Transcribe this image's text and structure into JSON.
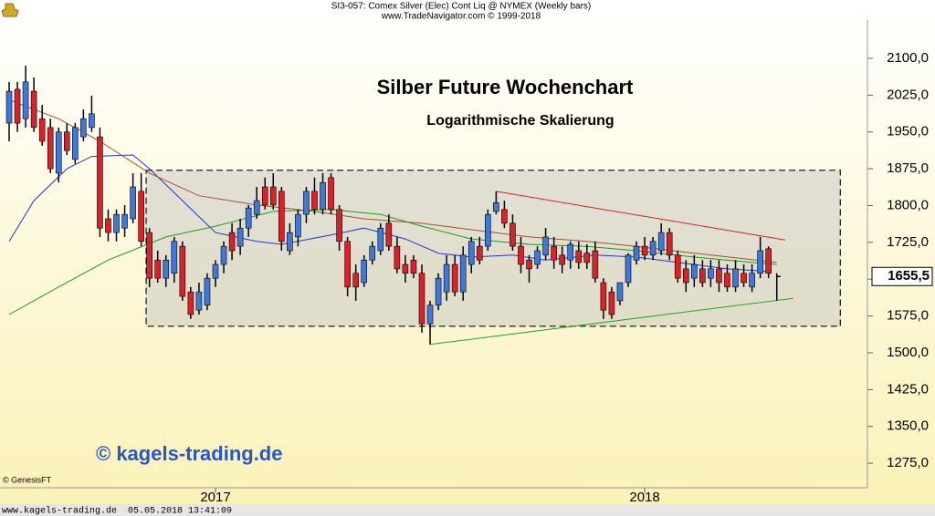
{
  "header": {
    "line1": "SI3-057:  Comex Silver (Elec) Cont Liq @ NYMEX  (Weekly bars)",
    "line2": "www.TradeNavigator.com © 1999-2018"
  },
  "watermark": "© kagels-trading.de",
  "source": "© GenesisFT",
  "footer": {
    "site": "www.kagels-trading.de",
    "timestamp": "05.05.2018 13:41:09"
  },
  "chart_data": {
    "type": "candlestick",
    "title": "Silber Future Wochenchart",
    "subtitle": "Logarithmische Skalierung",
    "categories": [
      null,
      null,
      null,
      null,
      null,
      null,
      null,
      null,
      null,
      null,
      null,
      null,
      null,
      null,
      null,
      null,
      null,
      null,
      null,
      null,
      null,
      null,
      null,
      null,
      null,
      "2017",
      null,
      null,
      null,
      null,
      null,
      null,
      null,
      null,
      null,
      null,
      null,
      null,
      null,
      null,
      null,
      null,
      null,
      null,
      null,
      null,
      null,
      null,
      null,
      null,
      null,
      null,
      null,
      null,
      null,
      null,
      null,
      null,
      null,
      null,
      null,
      null,
      null,
      null,
      null,
      null,
      null,
      null,
      null,
      null,
      null,
      null,
      null,
      null,
      null,
      null,
      null,
      "2018",
      null,
      null,
      null,
      null,
      null,
      null,
      null,
      null,
      null,
      null,
      null,
      null,
      null,
      null,
      null,
      null
    ],
    "open": [
      1968,
      2037,
      1977,
      2033,
      1977,
      1959,
      1866,
      1950,
      1894,
      1940,
      1959,
      1940,
      1773,
      1745,
      1754,
      1773,
      1829,
      1745,
      1689,
      1652,
      1662,
      1717,
      1624,
      1587,
      1597,
      1652,
      1680,
      1745,
      1717,
      1754,
      1782,
      1838,
      1838,
      1829,
      1708,
      1736,
      1782,
      1829,
      1792,
      1857,
      1792,
      1727,
      1662,
      1643,
      1689,
      1708,
      1764,
      1717,
      1680,
      1689,
      1662,
      1559,
      1597,
      1624,
      1680,
      1624,
      1680,
      1717,
      1717,
      1788,
      1792,
      1764,
      1717,
      1689,
      1680,
      1699,
      1717,
      1699,
      1689,
      1708,
      1703,
      1708,
      1643,
      1624,
      1606,
      1643,
      1689,
      1717,
      1699,
      1708,
      1745,
      1699,
      1671,
      1652,
      1671,
      1652,
      1671,
      1662,
      1634,
      1662,
      1634,
      1662,
      1712,
      1662
    ],
    "high": [
      2052,
      2052,
      2085,
      2061,
      2005,
      1977,
      1959,
      1968,
      1968,
      1996,
      2024,
      1959,
      1792,
      1792,
      1801,
      1866,
      1866,
      1754,
      1708,
      1699,
      1736,
      1727,
      1634,
      1643,
      1662,
      1689,
      1727,
      1764,
      1773,
      1801,
      1838,
      1857,
      1866,
      1838,
      1764,
      1792,
      1838,
      1857,
      1866,
      1866,
      1801,
      1736,
      1680,
      1699,
      1727,
      1764,
      1782,
      1736,
      1699,
      1699,
      1680,
      1606,
      1662,
      1699,
      1699,
      1717,
      1736,
      1736,
      1792,
      1829,
      1810,
      1782,
      1736,
      1699,
      1717,
      1754,
      1736,
      1717,
      1727,
      1727,
      1721,
      1727,
      1652,
      1634,
      1643,
      1703,
      1727,
      1736,
      1736,
      1764,
      1754,
      1708,
      1689,
      1699,
      1689,
      1689,
      1689,
      1680,
      1689,
      1680,
      1680,
      1736,
      1717,
      1662
    ],
    "low": [
      1931,
      1950,
      1959,
      1950,
      1922,
      1866,
      1847,
      1903,
      1885,
      1931,
      1950,
      1736,
      1727,
      1727,
      1736,
      1764,
      1717,
      1634,
      1643,
      1634,
      1643,
      1606,
      1569,
      1578,
      1587,
      1634,
      1662,
      1689,
      1699,
      1736,
      1773,
      1792,
      1792,
      1708,
      1699,
      1717,
      1764,
      1782,
      1782,
      1782,
      1708,
      1615,
      1606,
      1634,
      1680,
      1699,
      1708,
      1662,
      1643,
      1652,
      1541,
      1517,
      1587,
      1606,
      1615,
      1606,
      1662,
      1680,
      1708,
      1782,
      1754,
      1708,
      1662,
      1643,
      1671,
      1689,
      1671,
      1662,
      1671,
      1671,
      1671,
      1643,
      1569,
      1569,
      1597,
      1634,
      1680,
      1689,
      1689,
      1699,
      1689,
      1643,
      1624,
      1634,
      1634,
      1634,
      1624,
      1624,
      1624,
      1634,
      1624,
      1652,
      1652,
      1606
    ],
    "close": [
      2033,
      1968,
      2052,
      1959,
      1931,
      1875,
      1950,
      1912,
      1959,
      1977,
      1987,
      1754,
      1745,
      1782,
      1782,
      1838,
      1727,
      1652,
      1652,
      1689,
      1727,
      1615,
      1578,
      1624,
      1652,
      1680,
      1717,
      1708,
      1754,
      1795,
      1810,
      1801,
      1801,
      1727,
      1745,
      1782,
      1829,
      1792,
      1847,
      1792,
      1727,
      1634,
      1634,
      1689,
      1717,
      1754,
      1717,
      1671,
      1662,
      1662,
      1559,
      1597,
      1652,
      1680,
      1624,
      1699,
      1727,
      1689,
      1782,
      1806,
      1764,
      1717,
      1680,
      1671,
      1708,
      1736,
      1689,
      1680,
      1721,
      1684,
      1684,
      1652,
      1587,
      1578,
      1643,
      1699,
      1717,
      1699,
      1727,
      1745,
      1699,
      1652,
      1643,
      1680,
      1643,
      1671,
      1643,
      1634,
      1671,
      1643,
      1662,
      1708,
      1662,
      1655.5
    ],
    "colors": {
      "up": "#3f78d8",
      "down": "#d8232a",
      "last": "#000000"
    },
    "last_price": {
      "value": 1655.5,
      "label": "1655,5"
    },
    "lines": [
      {
        "color": "#2236d6",
        "x": [
          0,
          3,
          7,
          10,
          15,
          17,
          21,
          25,
          30,
          33,
          39,
          43,
          48,
          52,
          56,
          61,
          65,
          71,
          76,
          83,
          87,
          92
        ],
        "values": [
          1727,
          1810,
          1875,
          1900,
          1903,
          1875,
          1810,
          1745,
          1727,
          1721,
          1740,
          1754,
          1732,
          1703,
          1695,
          1699,
          1689,
          1699,
          1695,
          1680,
          1671,
          1666
        ]
      },
      {
        "color": "#1f9a1f",
        "x": [
          0,
          6,
          12,
          19,
          25,
          32,
          39,
          45,
          50,
          56,
          63,
          70,
          76,
          83,
          90,
          93
        ],
        "values": [
          1578,
          1634,
          1689,
          1736,
          1758,
          1788,
          1792,
          1782,
          1758,
          1732,
          1721,
          1717,
          1708,
          1695,
          1684,
          1680
        ]
      },
      {
        "color": "#a0522d",
        "x": [
          0,
          6,
          11,
          17,
          23,
          30,
          37,
          43,
          50,
          56,
          63,
          70,
          76,
          83,
          93
        ],
        "values": [
          2015,
          1977,
          1931,
          1866,
          1820,
          1801,
          1788,
          1773,
          1764,
          1751,
          1736,
          1727,
          1717,
          1703,
          1684
        ]
      },
      {
        "color": "#e02020",
        "x": [
          59,
          94
        ],
        "values": [
          1829,
          1730
        ]
      },
      {
        "color": "#22aa22",
        "x": [
          51,
          95
        ],
        "values": [
          1517,
          1611
        ]
      }
    ],
    "range_box": {
      "x": [
        16.6,
        100.7
      ],
      "y": [
        1554,
        1872
      ]
    },
    "ylim": [
      1225,
      2178
    ],
    "yticks": [
      {
        "value": 2100,
        "label": "2100,0"
      },
      {
        "value": 2025,
        "label": "2025,0"
      },
      {
        "value": 1950,
        "label": "1950,0"
      },
      {
        "value": 1875,
        "label": "1875,0"
      },
      {
        "value": 1800,
        "label": "1800,0"
      },
      {
        "value": 1725,
        "label": "1725,0"
      },
      {
        "value": 1650,
        "label": "1650,0"
      },
      {
        "value": 1575,
        "label": "1575,0"
      },
      {
        "value": 1500,
        "label": "1500,0"
      },
      {
        "value": 1425,
        "label": "1425,0"
      },
      {
        "value": 1350,
        "label": "1350,0"
      },
      {
        "value": 1275,
        "label": "1275,0"
      }
    ]
  }
}
